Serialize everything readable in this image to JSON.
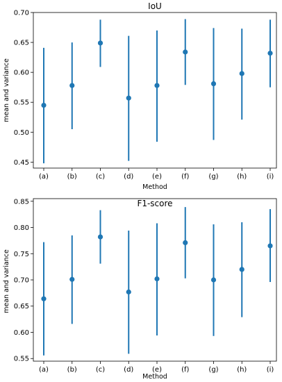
{
  "chart_data": [
    {
      "type": "scatter",
      "title": "IoU",
      "xlabel": "Method",
      "ylabel": "mean and variance",
      "categories": [
        "(a)",
        "(b)",
        "(c)",
        "(d)",
        "(e)",
        "(f)",
        "(g)",
        "(h)",
        "(i)"
      ],
      "yticks": [
        "0.45",
        "0.50",
        "0.55",
        "0.60",
        "0.65",
        "0.70"
      ],
      "ylim": [
        0.44,
        0.7
      ],
      "grid": false,
      "color": "#1f77b4",
      "series": [
        {
          "values": [
            0.545,
            0.578,
            0.649,
            0.557,
            0.578,
            0.634,
            0.581,
            0.598,
            0.632
          ],
          "lower": [
            0.448,
            0.505,
            0.609,
            0.452,
            0.484,
            0.579,
            0.487,
            0.521,
            0.575
          ],
          "upper": [
            0.641,
            0.65,
            0.688,
            0.661,
            0.67,
            0.689,
            0.674,
            0.673,
            0.688
          ]
        }
      ]
    },
    {
      "type": "scatter",
      "title": "F1-score",
      "xlabel": "Method",
      "ylabel": "mean and variance",
      "categories": [
        "(a)",
        "(b)",
        "(c)",
        "(d)",
        "(e)",
        "(f)",
        "(g)",
        "(h)",
        "(i)"
      ],
      "yticks": [
        "0.55",
        "0.60",
        "0.65",
        "0.70",
        "0.75",
        "0.80",
        "0.85"
      ],
      "ylim": [
        0.545,
        0.855
      ],
      "grid": false,
      "color": "#1f77b4",
      "series": [
        {
          "values": [
            0.664,
            0.701,
            0.782,
            0.677,
            0.702,
            0.771,
            0.7,
            0.72,
            0.765
          ],
          "lower": [
            0.556,
            0.616,
            0.731,
            0.559,
            0.594,
            0.703,
            0.593,
            0.629,
            0.696
          ],
          "upper": [
            0.772,
            0.785,
            0.833,
            0.794,
            0.808,
            0.839,
            0.806,
            0.81,
            0.835
          ]
        }
      ]
    }
  ]
}
